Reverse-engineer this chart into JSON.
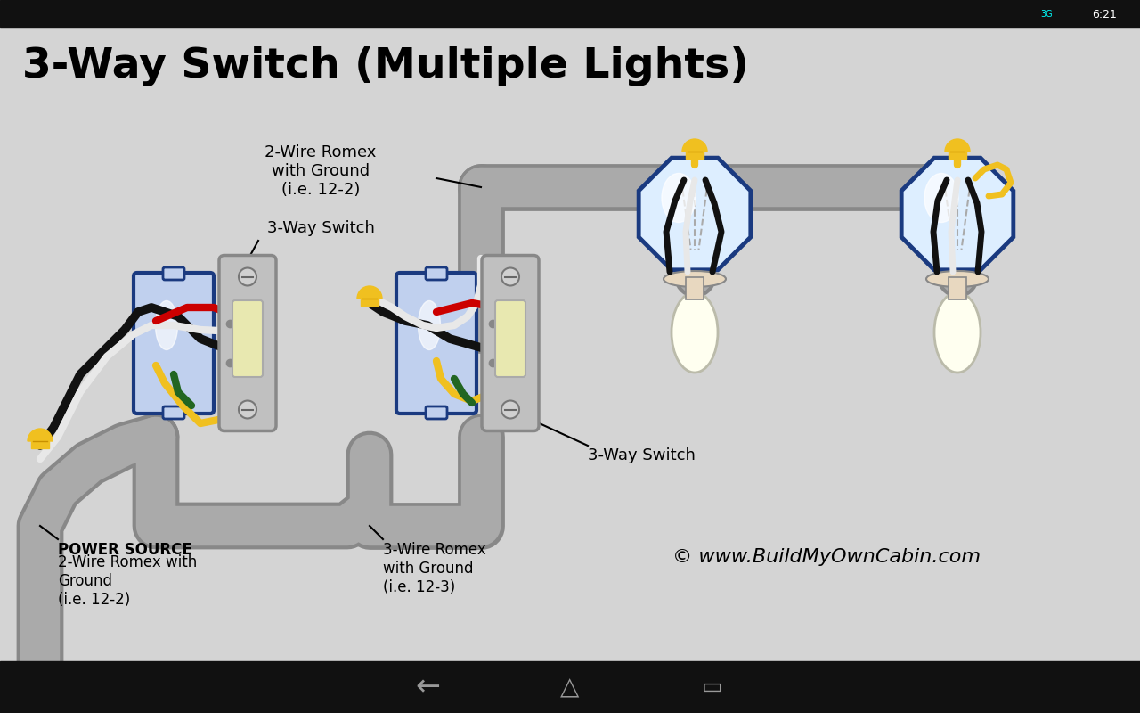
{
  "title": "3-Way Switch (Multiple Lights)",
  "bg_color": "#d4d4d4",
  "wire_black": "#111111",
  "wire_white": "#e8e8e8",
  "wire_red": "#cc0000",
  "wire_yellow": "#f0c020",
  "wire_green": "#226622",
  "conduit_color": "#aaaaaa",
  "conduit_outline": "#888888",
  "switch_body": "#c8c8c8",
  "switch_paddle": "#e8e8b0",
  "box_fill_light": "#c0d0ee",
  "box_fill_white": "#e8f0ff",
  "box_border": "#1a3a80",
  "lamp_glass": "#ddeeff",
  "lamp_bulb": "#fffff0",
  "lamp_socket": "#e8d8c0",
  "lamp_outline": "#1a3a80",
  "text_power_source_bold": "POWER SOURCE",
  "text_power_source_rest": "2-Wire Romex with\nGround\n(i.e. 12-2)",
  "text_3wire": "3-Wire Romex\nwith Ground\n(i.e. 12-3)",
  "text_2wire": "2-Wire Romex\nwith Ground\n(i.e. 12-2)",
  "text_switch1": "3-Way Switch",
  "text_switch2": "3-Way Switch",
  "text_copyright": "© www.BuildMyOwnCabin.com"
}
